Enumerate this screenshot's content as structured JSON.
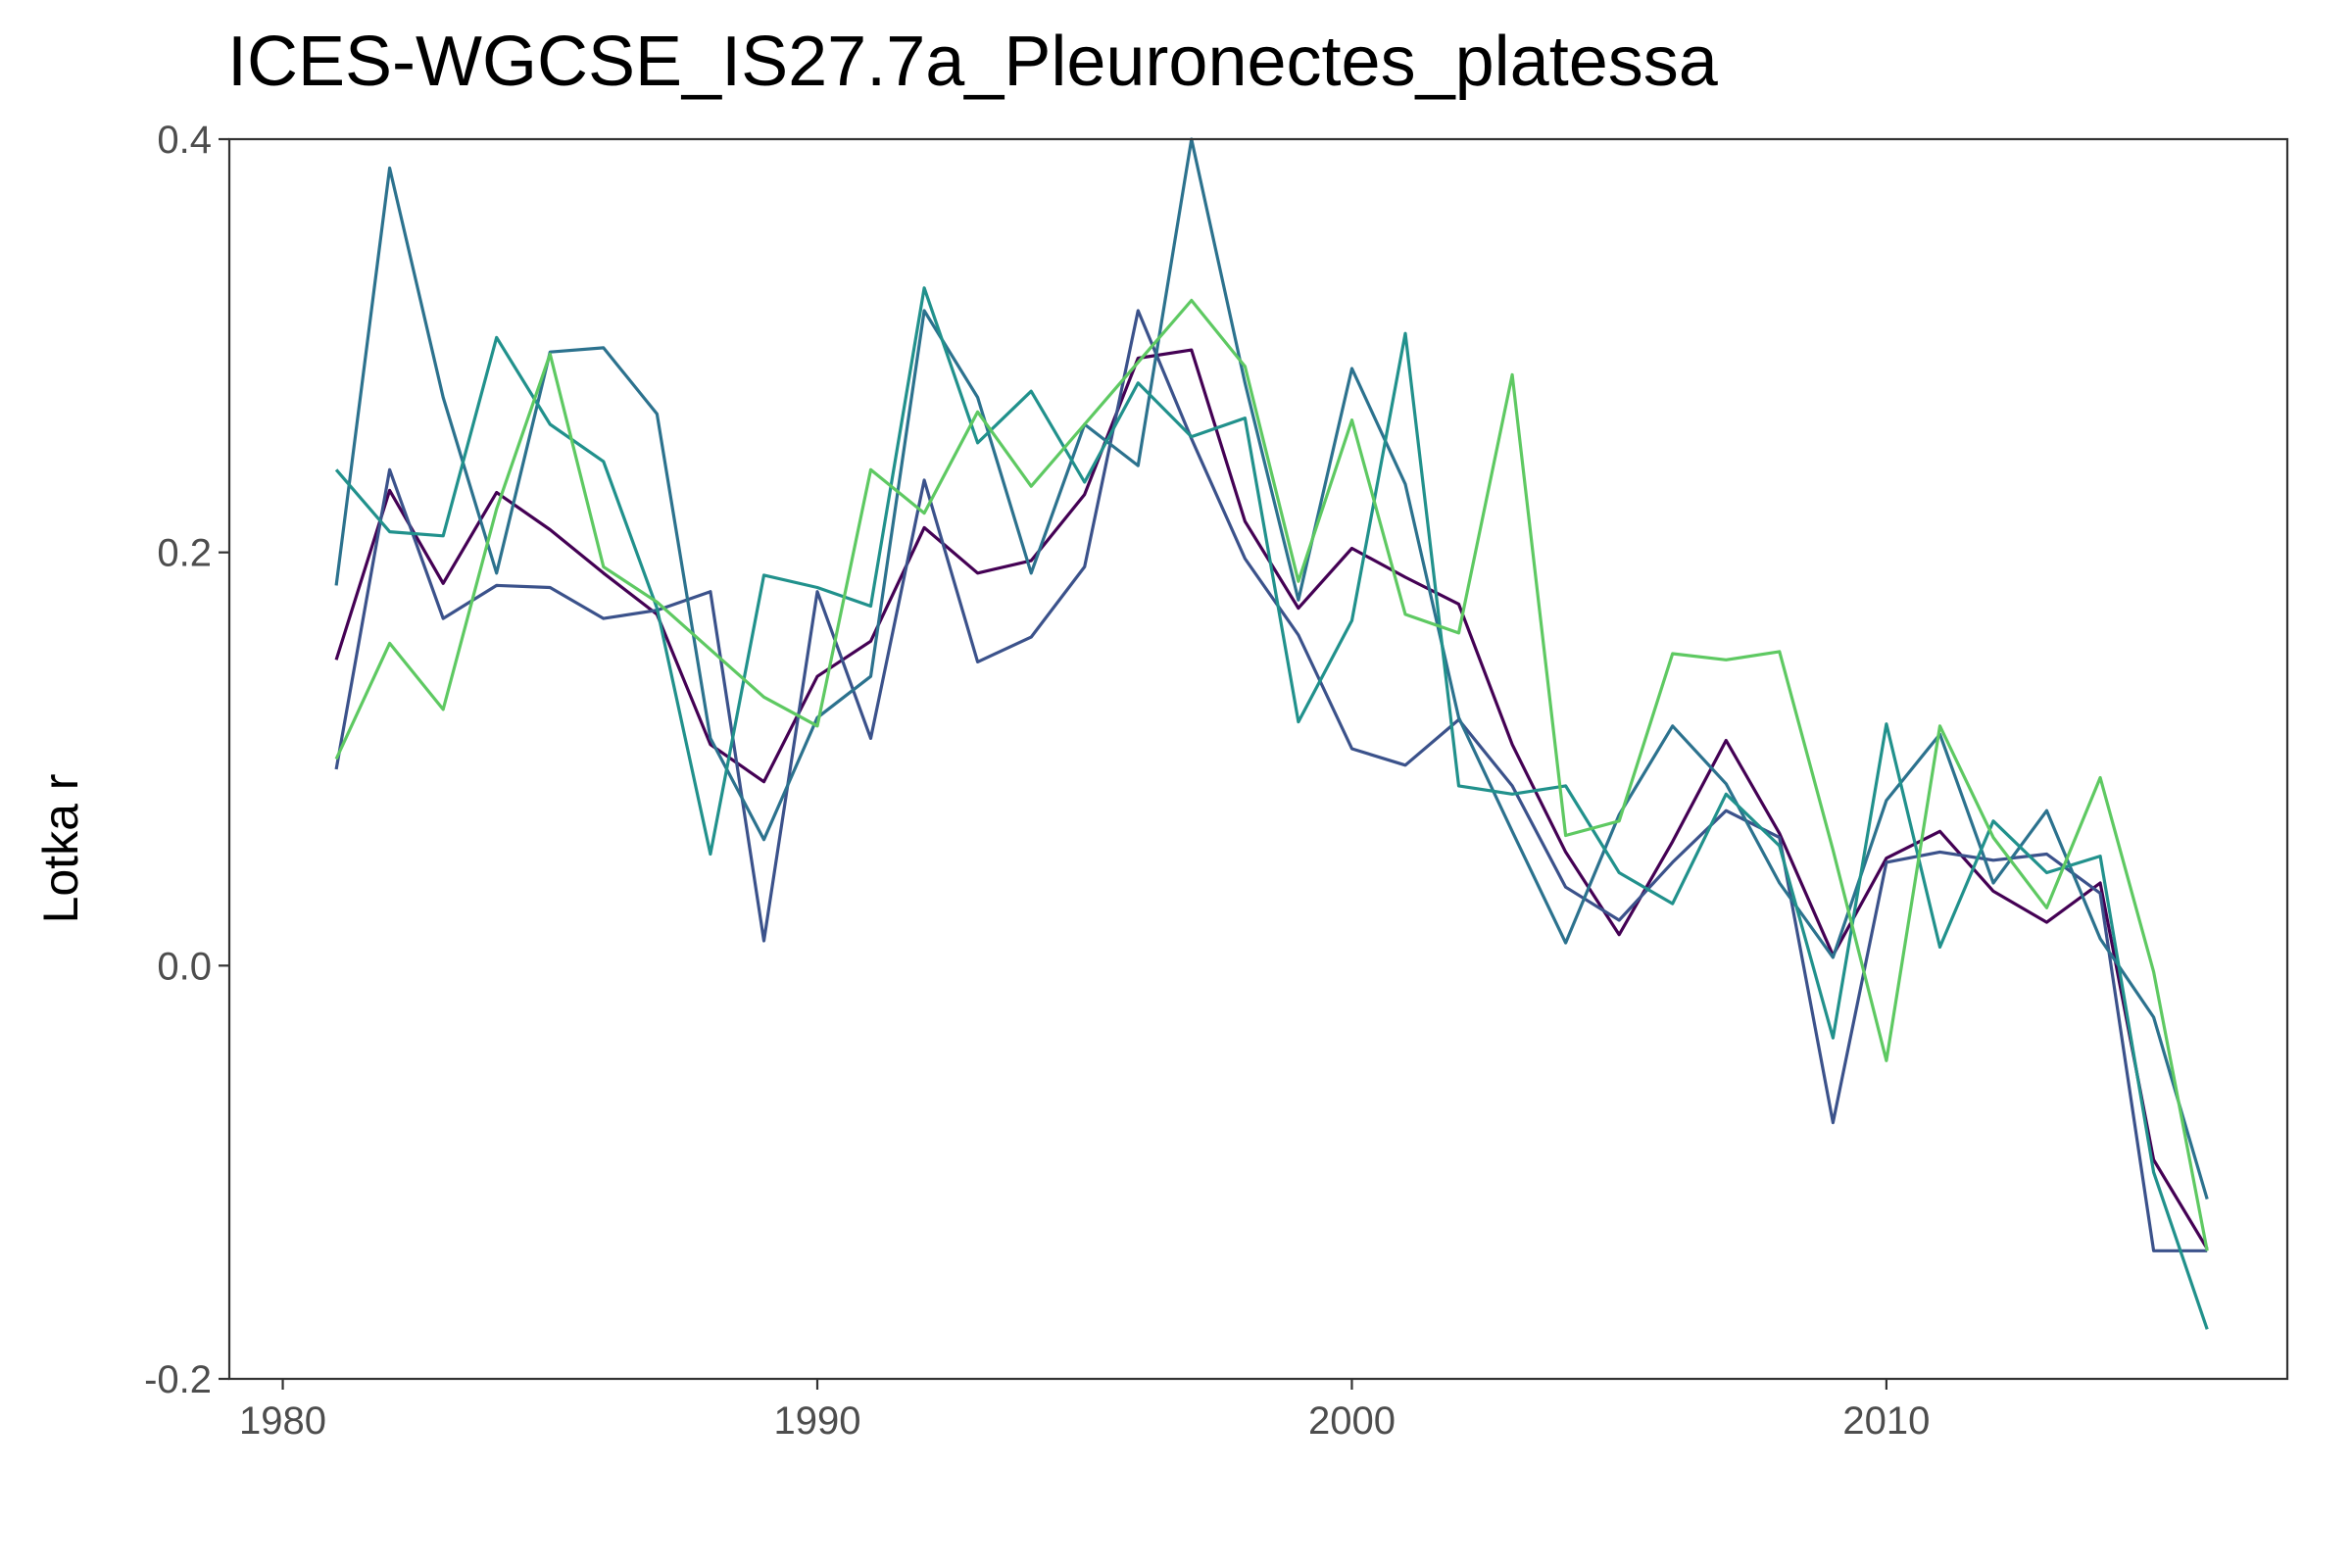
{
  "chart_data": {
    "type": "line",
    "title": "ICES-WGCSE_IS27.7a_Pleuronectes_platessa",
    "xlabel": "",
    "ylabel": "Lotka r",
    "xlim": [
      1979,
      2017.5
    ],
    "ylim": [
      -0.2,
      0.4
    ],
    "x_ticks": [
      1980,
      1990,
      2000,
      2010
    ],
    "y_ticks": [
      0.4,
      0.2,
      0.0,
      -0.2
    ],
    "y_tick_labels": [
      "0.4",
      "0.2",
      "0.0",
      "-0.2"
    ],
    "grid": false,
    "legend": "none",
    "x": [
      1981,
      1982,
      1983,
      1984,
      1985,
      1986,
      1987,
      1988,
      1989,
      1990,
      1991,
      1992,
      1993,
      1994,
      1995,
      1996,
      1997,
      1998,
      1999,
      2000,
      2001,
      2002,
      2003,
      2004,
      2005,
      2006,
      2007,
      2008,
      2009,
      2010,
      2011,
      2012,
      2013,
      2014,
      2015,
      2016
    ],
    "series": [
      {
        "color": "#440154",
        "values": [
          0.148,
          0.23,
          0.185,
          0.229,
          0.211,
          0.19,
          0.17,
          0.107,
          0.089,
          0.14,
          0.157,
          0.212,
          0.19,
          0.196,
          0.228,
          0.294,
          0.298,
          0.215,
          0.173,
          0.202,
          0.188,
          0.175,
          0.107,
          0.055,
          0.015,
          0.06,
          0.109,
          0.064,
          0.005,
          0.052,
          0.065,
          0.036,
          0.021,
          0.04,
          -0.094,
          -0.137
        ]
      },
      {
        "color": "#3b528b",
        "values": [
          0.095,
          0.24,
          0.168,
          0.184,
          0.183,
          0.168,
          0.172,
          0.181,
          0.012,
          0.181,
          0.11,
          0.235,
          0.147,
          0.159,
          0.193,
          0.317,
          0.255,
          0.197,
          0.16,
          0.105,
          0.097,
          0.119,
          0.087,
          0.038,
          0.022,
          0.05,
          0.075,
          0.062,
          -0.076,
          0.05,
          0.055,
          0.051,
          0.054,
          0.035,
          -0.138,
          -0.138
        ]
      },
      {
        "color": "#2c728e",
        "values": [
          0.184,
          0.386,
          0.275,
          0.19,
          0.297,
          0.299,
          0.267,
          0.11,
          0.061,
          0.12,
          0.14,
          0.317,
          0.275,
          0.19,
          0.262,
          0.242,
          0.4,
          0.282,
          0.177,
          0.289,
          0.233,
          0.12,
          0.065,
          0.011,
          0.073,
          0.116,
          0.088,
          0.04,
          0.004,
          0.08,
          0.112,
          0.04,
          0.075,
          0.013,
          -0.025,
          -0.113
        ]
      },
      {
        "color": "#21918c",
        "values": [
          0.24,
          0.21,
          0.208,
          0.304,
          0.262,
          0.244,
          0.173,
          0.054,
          0.189,
          0.183,
          0.174,
          0.328,
          0.253,
          0.278,
          0.234,
          0.282,
          0.256,
          0.265,
          0.118,
          0.167,
          0.306,
          0.087,
          0.083,
          0.087,
          0.045,
          0.03,
          0.083,
          0.058,
          -0.035,
          0.117,
          0.009,
          0.07,
          0.045,
          0.053,
          -0.1,
          -0.176
        ]
      },
      {
        "color": "#5ec962",
        "values": [
          0.1,
          0.156,
          0.124,
          0.221,
          0.296,
          0.193,
          0.176,
          0.153,
          0.13,
          0.116,
          0.24,
          0.219,
          0.268,
          0.232,
          0.262,
          0.292,
          0.322,
          0.29,
          0.186,
          0.264,
          0.17,
          0.161,
          0.286,
          0.063,
          0.07,
          0.151,
          0.148,
          0.152,
          0.056,
          -0.046,
          0.116,
          0.062,
          0.028,
          0.091,
          -0.003,
          -0.138
        ]
      }
    ]
  }
}
